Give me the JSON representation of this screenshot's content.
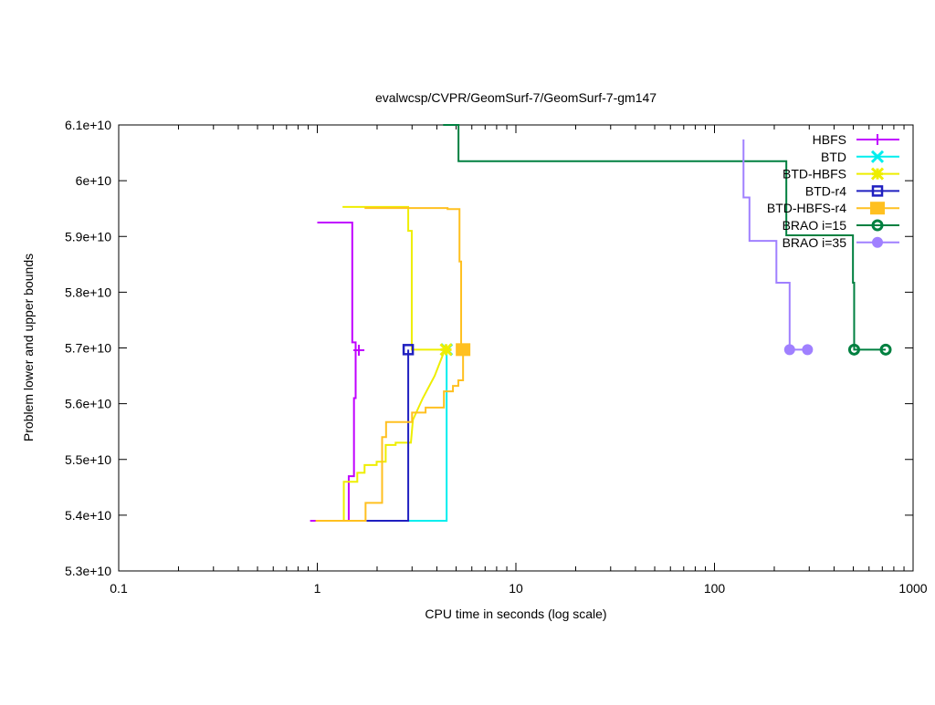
{
  "chart_data": {
    "type": "line",
    "title": "evalwcsp/CVPR/GeomSurf-7/GeomSurf-7-gm147",
    "xlabel": "CPU time in seconds (log scale)",
    "ylabel": "Problem lower and upper bounds",
    "xscale": "log",
    "xlim": [
      0.1,
      1000
    ],
    "ylim": [
      5.3,
      6.1
    ],
    "y_unit_multiplier": "e10",
    "xticks": [
      "0.1",
      "1",
      "10",
      "100",
      "1000"
    ],
    "xtick_values": [
      0.1,
      1,
      10,
      100,
      1000
    ],
    "yticks": [
      "5.3e+10",
      "5.4e+10",
      "5.5e+10",
      "5.6e+10",
      "5.7e+10",
      "5.8e+10",
      "5.9e+10",
      "6e+10",
      "6.1e+10"
    ],
    "ytick_values": [
      5.3,
      5.4,
      5.5,
      5.6,
      5.7,
      5.8,
      5.9,
      6.0,
      6.1
    ],
    "grid": false,
    "legend_position": "top-right",
    "series": [
      {
        "name": "HBFS",
        "color": "#c000ff",
        "marker": "plus",
        "lines": [
          [
            [
              1.0,
              5.925
            ],
            [
              1.5,
              5.925
            ],
            [
              1.5,
              5.71
            ],
            [
              1.56,
              5.71
            ],
            [
              1.56,
              5.696
            ]
          ],
          [
            [
              0.92,
              5.39
            ],
            [
              1.0,
              5.39
            ]
          ],
          [
            [
              1.44,
              5.39
            ],
            [
              1.44,
              5.47
            ],
            [
              1.53,
              5.47
            ],
            [
              1.53,
              5.61
            ],
            [
              1.56,
              5.61
            ],
            [
              1.56,
              5.696
            ]
          ]
        ],
        "markers": [
          [
            1.62,
            5.696
          ]
        ]
      },
      {
        "name": "BTD",
        "color": "#00eeee",
        "marker": "x",
        "lines": [
          [
            [
              2.87,
              5.39
            ],
            [
              4.48,
              5.39
            ],
            [
              4.48,
              5.697
            ]
          ]
        ],
        "markers": [
          [
            4.48,
            5.697
          ]
        ]
      },
      {
        "name": "BTD-HBFS",
        "color": "#eeee00",
        "marker": "star",
        "lines": [
          [
            [
              1.34,
              5.953
            ],
            [
              2.87,
              5.953
            ],
            [
              2.87,
              5.91
            ],
            [
              2.99,
              5.91
            ],
            [
              2.99,
              5.697
            ],
            [
              4.39,
              5.697
            ]
          ],
          [
            [
              1.36,
              5.39
            ],
            [
              1.36,
              5.46
            ],
            [
              1.59,
              5.46
            ],
            [
              1.59,
              5.476
            ],
            [
              1.73,
              5.476
            ],
            [
              1.73,
              5.49
            ],
            [
              1.99,
              5.49
            ],
            [
              1.99,
              5.496
            ],
            [
              2.21,
              5.496
            ],
            [
              2.21,
              5.526
            ],
            [
              2.48,
              5.526
            ],
            [
              2.48,
              5.53
            ],
            [
              2.96,
              5.53
            ],
            [
              3.03,
              5.571
            ],
            [
              3.4,
              5.61
            ],
            [
              3.9,
              5.65
            ],
            [
              4.39,
              5.697
            ]
          ]
        ],
        "markers": [
          [
            4.45,
            5.697
          ]
        ]
      },
      {
        "name": "BTD-r4",
        "color": "#2020c0",
        "marker": "open-square",
        "lines": [
          [
            [
              1.77,
              5.39
            ],
            [
              2.87,
              5.39
            ],
            [
              2.87,
              5.697
            ]
          ]
        ],
        "markers": [
          [
            2.87,
            5.697
          ]
        ]
      },
      {
        "name": "BTD-HBFS-r4",
        "color": "#ffc020",
        "marker": "filled-square",
        "lines": [
          [
            [
              1.73,
              5.951
            ],
            [
              4.53,
              5.951
            ],
            [
              4.53,
              5.949
            ],
            [
              5.2,
              5.949
            ],
            [
              5.2,
              5.855
            ],
            [
              5.3,
              5.855
            ],
            [
              5.3,
              5.697
            ]
          ],
          [
            [
              0.98,
              5.39
            ],
            [
              1.75,
              5.39
            ],
            [
              1.75,
              5.422
            ],
            [
              2.12,
              5.422
            ],
            [
              2.12,
              5.54
            ],
            [
              2.22,
              5.54
            ],
            [
              2.22,
              5.567
            ],
            [
              3.0,
              5.567
            ],
            [
              3.0,
              5.584
            ],
            [
              3.51,
              5.584
            ],
            [
              3.51,
              5.593
            ],
            [
              4.34,
              5.593
            ],
            [
              4.34,
              5.622
            ],
            [
              4.82,
              5.622
            ],
            [
              4.82,
              5.632
            ],
            [
              5.13,
              5.632
            ],
            [
              5.13,
              5.642
            ],
            [
              5.42,
              5.642
            ],
            [
              5.42,
              5.697
            ]
          ]
        ],
        "markers": [
          [
            5.42,
            5.697
          ]
        ]
      },
      {
        "name": "BRAO i=15",
        "color": "#008040",
        "marker": "open-circle",
        "lines": [
          [
            [
              4.3,
              6.1
            ],
            [
              5.14,
              6.1
            ],
            [
              5.14,
              6.035
            ],
            [
              230,
              6.035
            ],
            [
              230,
              5.902
            ],
            [
              498,
              5.902
            ],
            [
              498,
              5.817
            ],
            [
              505,
              5.817
            ],
            [
              505,
              5.697
            ],
            [
              728,
              5.697
            ]
          ]
        ],
        "markers": [
          [
            505,
            5.697
          ],
          [
            728,
            5.697
          ]
        ]
      },
      {
        "name": "BRAO i=35",
        "color": "#a080ff",
        "marker": "filled-circle",
        "lines": [
          [
            [
              140,
              6.074
            ],
            [
              140,
              5.97
            ],
            [
              150,
              5.97
            ],
            [
              150,
              5.892
            ],
            [
              205,
              5.892
            ],
            [
              205,
              5.817
            ],
            [
              239,
              5.817
            ],
            [
              239,
              5.697
            ],
            [
              294,
              5.697
            ]
          ]
        ],
        "markers": [
          [
            239,
            5.697
          ],
          [
            294,
            5.697
          ]
        ]
      }
    ]
  }
}
